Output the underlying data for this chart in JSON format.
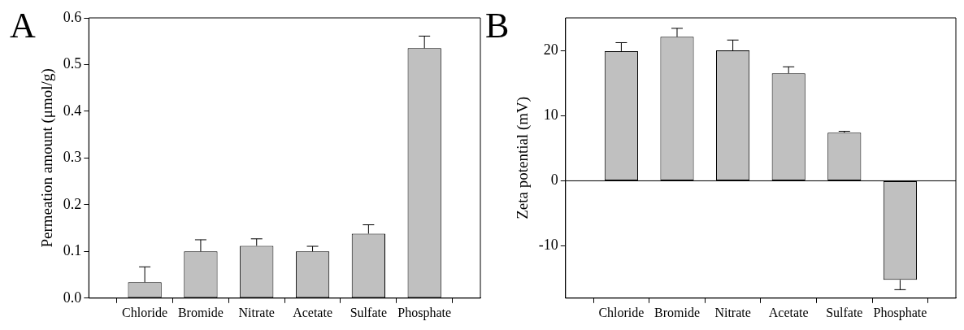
{
  "chart_data": [
    {
      "type": "bar",
      "title": "A",
      "ylabel": "Permeation amount (μmol/g)",
      "categories": [
        "Chloride",
        "Bromide",
        "Nitrate",
        "Acetate",
        "Sulfate",
        "Phosphate"
      ],
      "values": [
        0.034,
        0.1,
        0.112,
        0.1,
        0.138,
        0.535
      ],
      "errors": [
        [
          0.034,
          0.067
        ],
        [
          0.1,
          0.125
        ],
        [
          0.112,
          0.127
        ],
        [
          0.1,
          0.111
        ],
        [
          0.138,
          0.157
        ],
        [
          0.535,
          0.561
        ]
      ],
      "color": "#c0c0c0",
      "ylim": [
        0,
        0.6
      ],
      "yticks": [
        {
          "value": 0,
          "label": "0.0"
        },
        0.1,
        0.2,
        0.3,
        0.4,
        0.5,
        0.6
      ],
      "grid": false,
      "legend": false
    },
    {
      "type": "bar",
      "title": "B",
      "ylabel": "Zeta potential (mV)",
      "categories": [
        "Chloride",
        "Bromide",
        "Nitrate",
        "Acetate",
        "Sulfate",
        "Phosphate"
      ],
      "values": [
        19.9,
        22.1,
        20.0,
        16.5,
        7.4,
        -15.2
      ],
      "errors": [
        [
          19.9,
          21.2
        ],
        [
          22.1,
          23.4
        ],
        [
          20.0,
          21.6
        ],
        [
          16.5,
          17.5
        ],
        [
          7.4,
          7.6
        ],
        [
          -16.7,
          -15.2
        ]
      ],
      "color": "#c0c0c0",
      "ylim": [
        -18,
        25
      ],
      "yticks": [
        -10,
        0,
        10,
        20
      ],
      "grid": false,
      "legend": false,
      "ref_lines": [
        {
          "axis": "y",
          "value": 0,
          "color": "#000000"
        }
      ]
    }
  ]
}
